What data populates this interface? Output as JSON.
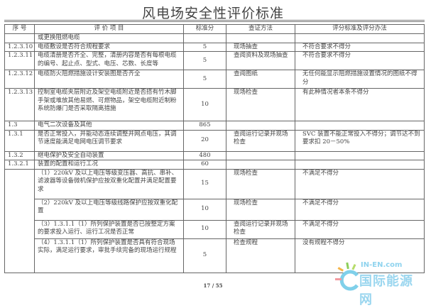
{
  "title": "风电场安全性评价标准",
  "headers": [
    "序 号",
    "评 价 项 目",
    "标准分",
    "查证方法",
    "评分标准及评分办法"
  ],
  "rows": [
    {
      "no": "",
      "item": "或更换阻燃电缆",
      "score": "",
      "method": "",
      "criteria": ""
    },
    {
      "no": "1.2.3.10",
      "item": "电缆敷设是否符合规程要求",
      "score": "5",
      "method": "现场抽查",
      "criteria": "不符合要求不得分"
    },
    {
      "no": "1.2.3.11",
      "item": "电缆清册是否齐全、完整，清册内容是否有每根电缆的编号、起止点、型式、电压、芯数、长度等",
      "score": "5",
      "method": "查阅资料及现场抽查",
      "criteria": "不符合要求不得分"
    },
    {
      "no": "1.2.3.12",
      "item": "电缆防火阻燃措施设计安装图是否齐全",
      "score": "5",
      "method": "查阅图纸",
      "criteria": "无任何能显示阻燃措施设置情况的图纸不得分"
    },
    {
      "no": "1.2.3.13",
      "item": "控制室电缆夹层附近及架空电缆附近是否搭有竹木脚手架或堆放其他易燃、可燃物品，架空电缆附近制粉系统防爆门是否采取隔离措施",
      "score": "10",
      "method": "现场检查",
      "criteria": "有此种情况者本条不得分"
    },
    {
      "no": "1.3",
      "item": "电气二次设备及其他",
      "score": "865",
      "method": "",
      "criteria": ""
    },
    {
      "no": "1.3.1",
      "item": "是否正常投入，并能动态连续调整并网点电压，其调节速度能满足电网电压调节要求",
      "score": "20",
      "method": "查阅运行记录并现场检查",
      "criteria": "SVC 装置不能正常投入不得分；调节达不到要求扣 20－50%"
    },
    {
      "no": "1.3.2",
      "item": "继电保护及安全自动装置",
      "score": "480",
      "method": "",
      "criteria": ""
    },
    {
      "no": "1.3.2.1",
      "item": "装置的配置和运行工况",
      "score": "60",
      "method": "",
      "criteria": ""
    }
  ],
  "subrows": [
    {
      "item": "（1）220kV 及以上电压等级变压器、高抗、串补、滤波器等设备微机保护应按双重化配置并满足配置要求",
      "score": "15",
      "method": "现场检查",
      "criteria": "不满足不得分"
    },
    {
      "item": "（2）220kV 及以上电压等级线路保护应按双重化配置",
      "score": "10",
      "method": "现场检查",
      "criteria": "不满足不得分"
    },
    {
      "item": "（3）1.3.1.1（1）所列保护装置是否已按整定方案的要求投入运行、运行工况是否正常",
      "score": "10",
      "method": "查阅运行记录并现场检查",
      "criteria": "不满足不得分"
    },
    {
      "item": "（4）1.3.1.1（1）所列保护装置是否具有符合现场实际，满足运行要求，审批手续完备的现场运行规程",
      "score": "5",
      "method": "检查规程",
      "criteria": "没有规程不得分"
    }
  ],
  "page": "17 / 55",
  "watermark": {
    "en": "IN-EN.com",
    "cn": "国际能源网"
  }
}
